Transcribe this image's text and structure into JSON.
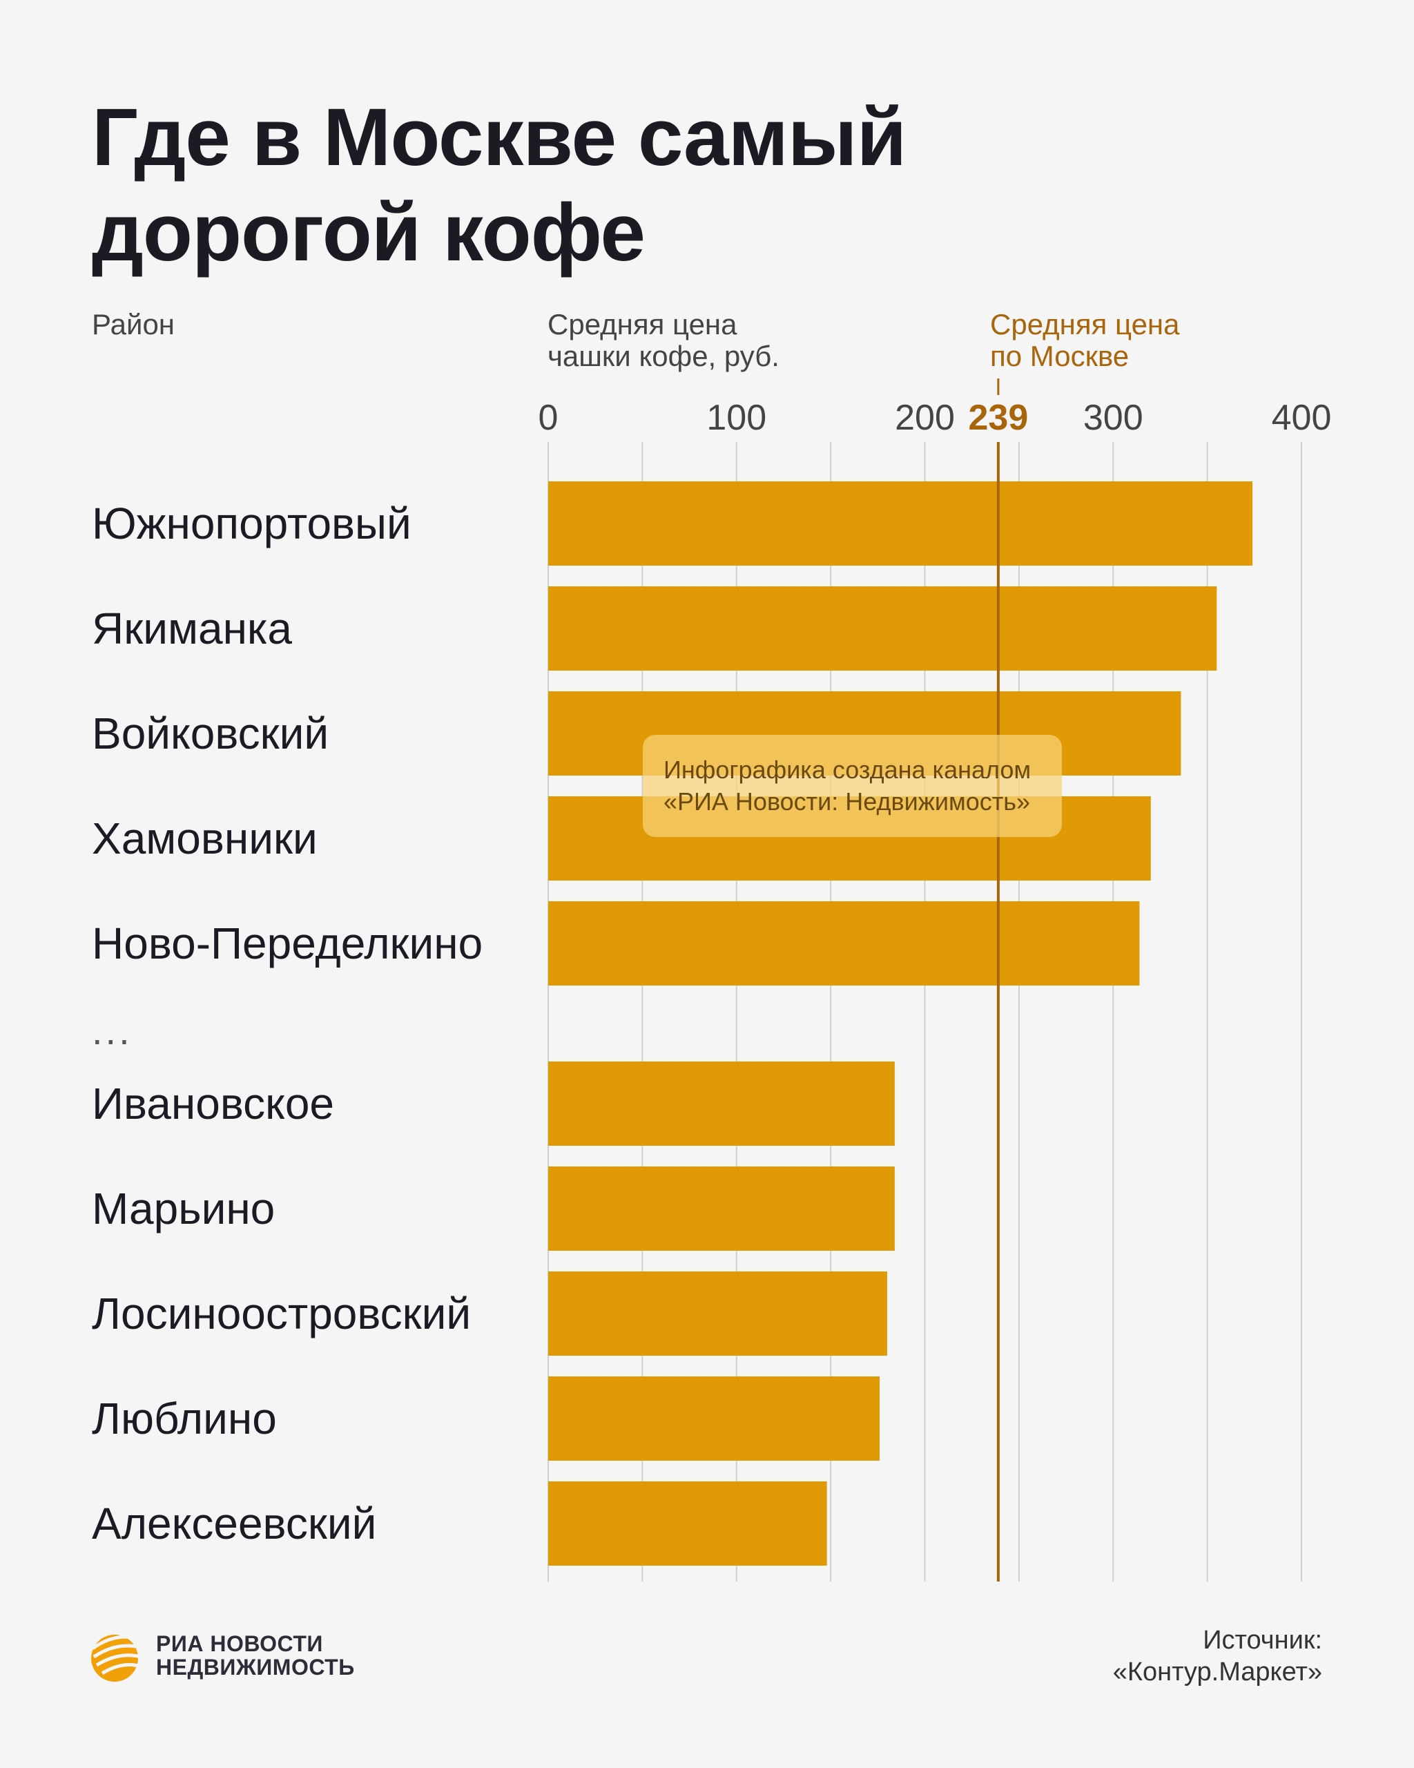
{
  "title": {
    "line1": "Где в Москве самый",
    "line2": "дорогой кофе"
  },
  "headers": {
    "district": "Район",
    "avg_price_line1": "Средняя цена",
    "avg_price_line2": "чашки кофе, руб.",
    "moscow_avg_line1": "Средняя цена",
    "moscow_avg_line2": "по Москве"
  },
  "watermark": {
    "line1": "Инфографика создана каналом",
    "line2": "«РИА Новости: Недвижимость»"
  },
  "logo": {
    "line1": "РИА НОВОСТИ",
    "line2": "НЕДВИЖИМОСТЬ"
  },
  "source": {
    "line1": "Источник:",
    "line2": "«Контур.Маркет»"
  },
  "ellipsis": "...",
  "colors": {
    "bar": "#e09a06",
    "average_line": "#a8650c",
    "grid": "#cfcfcf",
    "background": "#f5f5f5"
  },
  "chart_data": {
    "type": "bar",
    "orientation": "horizontal",
    "title": "Где в Москве самый дорогой кофе",
    "xlabel": "Средняя цена чашки кофе, руб.",
    "ylabel": "Район",
    "xlim": [
      0,
      400
    ],
    "xticks": [
      0,
      100,
      200,
      300,
      400
    ],
    "grid": true,
    "reference_line": {
      "label": "Средняя цена по Москве",
      "value": 239,
      "display": "239"
    },
    "groups": [
      {
        "name": "top",
        "categories": [
          "Южнопортовый",
          "Якиманка",
          "Войковский",
          "Хамовники",
          "Ново-Переделкино"
        ],
        "values": [
          374,
          355,
          336,
          320,
          314
        ]
      },
      {
        "name": "bottom",
        "categories": [
          "Ивановское",
          "Марьино",
          "Лосиноостровский",
          "Люблино",
          "Алексеевский"
        ],
        "values": [
          184,
          184,
          180,
          176,
          148
        ]
      }
    ]
  }
}
